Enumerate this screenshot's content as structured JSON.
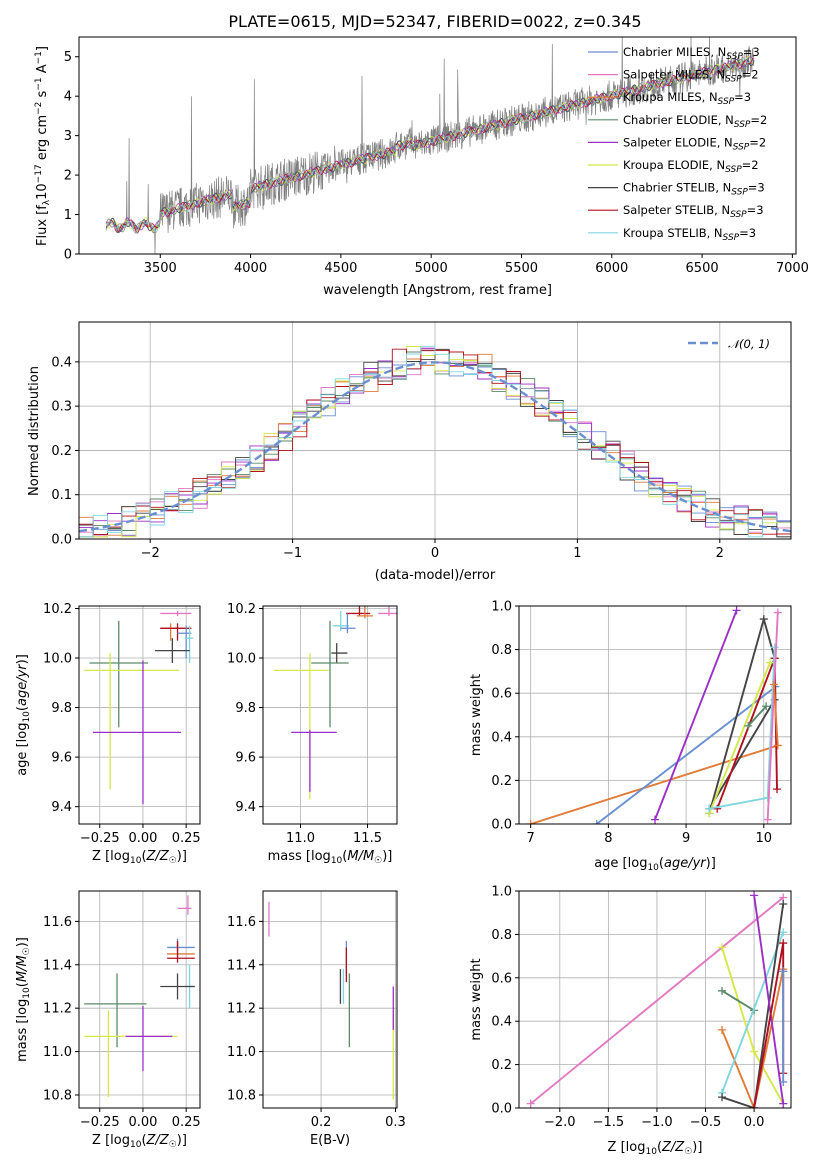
{
  "page": {
    "title": "PLATE=0615, MJD=52347, FIBERID=0022, z=0.345"
  },
  "chart_data": [
    {
      "id": "spectrum",
      "type": "line",
      "xlabel": "wavelength [Angstrom, rest frame]",
      "ylabel": "Flux [f_λ 10^-17 erg cm^-2 s^-1 A^-1]",
      "xlim": [
        3050,
        7020
      ],
      "ylim": [
        0,
        5.5
      ],
      "xticks": [
        3500,
        4000,
        4500,
        5000,
        5500,
        6000,
        6500,
        7000
      ],
      "yticks": [
        0,
        1,
        2,
        3,
        4,
        5
      ],
      "grid": false,
      "legend_position": "top-right",
      "data_series": {
        "name": "",
        "color": "#808080",
        "x_range": [
          3200,
          6790
        ],
        "level_start": 0.72,
        "level_end": 4.9,
        "noise": "high, with spikes to 5.5"
      },
      "series": [
        {
          "name": "Chabrier MILES, N_SSP=3",
          "color": "#6a8fd0"
        },
        {
          "name": "Salpeter MILES, N_SSP=2",
          "color": "#e377c2"
        },
        {
          "name": "Kroupa MILES, N_SSP=3",
          "color": "#e07b39"
        },
        {
          "name": "Chabrier ELODIE, N_SSP=2",
          "color": "#5b8a6a"
        },
        {
          "name": "Salpeter ELODIE, N_SSP=2",
          "color": "#9b30c8"
        },
        {
          "name": "Kroupa ELODIE, N_SSP=2",
          "color": "#d4e84a"
        },
        {
          "name": "Chabrier STELIB, N_SSP=3",
          "color": "#444444"
        },
        {
          "name": "Salpeter STELIB, N_SSP=3",
          "color": "#b01020"
        },
        {
          "name": "Kroupa STELIB, N_SSP=3",
          "color": "#7fd6e0"
        }
      ]
    },
    {
      "id": "residuals",
      "type": "line",
      "xlabel": "(data-model)/error",
      "ylabel": "Normed distribution",
      "xlim": [
        -2.5,
        2.5
      ],
      "ylim": [
        0,
        0.49
      ],
      "xticks": [
        -2,
        -1,
        0,
        1,
        2
      ],
      "yticks": [
        0.0,
        0.1,
        0.2,
        0.3,
        0.4
      ],
      "grid": true,
      "legend_position": "top-right",
      "gaussian": {
        "name": "𝒩(0, 1)",
        "mean": 0,
        "sigma": 1,
        "color": "#6a8fd0"
      },
      "bin_width": 0.1,
      "histogram_shape": "step histograms of each model, approx. 0.40 peak at 0, spread ±0.06"
    },
    {
      "id": "Z-age",
      "type": "scatter",
      "xlabel": "Z [log10(Z/Z☉)]",
      "ylabel": "age  [log10(age/yr)]",
      "xlim": [
        -0.37,
        0.33
      ],
      "ylim": [
        9.33,
        10.21
      ],
      "xticks": [
        -0.25,
        0.0,
        0.25
      ],
      "yticks": [
        9.4,
        9.6,
        9.8,
        10.0,
        10.2
      ],
      "grid": true,
      "points": [
        {
          "x": 0.2,
          "y": 10.18,
          "xerr": [
            0.1,
            0.08
          ],
          "yerr": [
            0.01,
            0.01
          ],
          "color": "#e377c2"
        },
        {
          "x": 0.16,
          "y": 10.12,
          "xerr": [
            0.06,
            0.12
          ],
          "yerr": [
            0.05,
            0.02
          ],
          "color": "#e07b39"
        },
        {
          "x": 0.2,
          "y": 10.12,
          "xerr": [
            0.1,
            0.08
          ],
          "yerr": [
            0.05,
            0.02
          ],
          "color": "#b01020"
        },
        {
          "x": 0.25,
          "y": 10.1,
          "xerr": [
            0.05,
            0.03
          ],
          "yerr": [
            0.1,
            0.03
          ],
          "color": "#6a8fd0"
        },
        {
          "x": 0.27,
          "y": 10.08,
          "xerr": [
            0.03,
            0.02
          ],
          "yerr": [
            0.1,
            0.05
          ],
          "color": "#7fd6e0"
        },
        {
          "x": 0.17,
          "y": 10.03,
          "xerr": [
            0.1,
            0.1
          ],
          "yerr": [
            0.05,
            0.05
          ],
          "color": "#444444"
        },
        {
          "x": -0.14,
          "y": 9.98,
          "xerr": [
            0.17,
            0.17
          ],
          "yerr": [
            0.26,
            0.17
          ],
          "color": "#5b8a6a"
        },
        {
          "x": -0.19,
          "y": 9.95,
          "xerr": [
            0.15,
            0.4
          ],
          "yerr": [
            0.48,
            0.07
          ],
          "color": "#d4e84a"
        },
        {
          "x": 0.0,
          "y": 9.7,
          "xerr": [
            0.29,
            0.22
          ],
          "yerr": [
            0.29,
            0.29
          ],
          "color": "#9b30c8"
        }
      ]
    },
    {
      "id": "mass-age",
      "type": "scatter",
      "xlabel": "mass [log10(M/M☉)]",
      "ylabel": "",
      "xlim": [
        10.72,
        11.72
      ],
      "ylim": [
        9.33,
        10.21
      ],
      "xticks": [
        11.0,
        11.5
      ],
      "yticks": [
        9.4,
        9.6,
        9.8,
        10.0,
        10.2
      ],
      "grid": true,
      "points": [
        {
          "x": 11.66,
          "y": 10.18,
          "xerr": [
            0.08,
            0.08
          ],
          "yerr": [
            0.01,
            0.15
          ],
          "color": "#e377c2"
        },
        {
          "x": 11.44,
          "y": 10.18,
          "xerr": [
            0.1,
            0.08
          ],
          "yerr": [
            0.01,
            0.06
          ],
          "color": "#b01020"
        },
        {
          "x": 11.48,
          "y": 10.17,
          "xerr": [
            0.06,
            0.06
          ],
          "yerr": [
            0.01,
            0.06
          ],
          "color": "#e07b39"
        },
        {
          "x": 11.3,
          "y": 10.13,
          "xerr": [
            0.06,
            0.06
          ],
          "yerr": [
            0.02,
            0.06
          ],
          "color": "#7fd6e0"
        },
        {
          "x": 11.35,
          "y": 10.12,
          "xerr": [
            0.05,
            0.06
          ],
          "yerr": [
            0.02,
            0.06
          ],
          "color": "#6a8fd0"
        },
        {
          "x": 11.27,
          "y": 10.02,
          "xerr": [
            0.04,
            0.08
          ],
          "yerr": [
            0.04,
            0.04
          ],
          "color": "#444444"
        },
        {
          "x": 11.22,
          "y": 9.98,
          "xerr": [
            0.14,
            0.14
          ],
          "yerr": [
            0.26,
            0.17
          ],
          "color": "#5b8a6a"
        },
        {
          "x": 11.07,
          "y": 9.95,
          "xerr": [
            0.27,
            0.14
          ],
          "yerr": [
            0.52,
            0.07
          ],
          "color": "#d4e84a"
        },
        {
          "x": 11.07,
          "y": 9.7,
          "xerr": [
            0.14,
            0.2
          ],
          "yerr": [
            0.24,
            0.01
          ],
          "color": "#9b30c8"
        }
      ]
    },
    {
      "id": "age-weight",
      "type": "line",
      "xlabel": "age  [log10(age/yr)]",
      "ylabel": "mass weight",
      "xlim": [
        6.85,
        10.35
      ],
      "ylim": [
        0,
        1
      ],
      "xticks": [
        7,
        8,
        9,
        10
      ],
      "yticks": [
        0.0,
        0.2,
        0.4,
        0.6,
        0.8,
        1.0
      ],
      "grid": true,
      "series": [
        {
          "color": "#e07b39",
          "x": [
            7.0,
            10.18
          ],
          "y": [
            0.0,
            0.36
          ]
        },
        {
          "color": "#6a8fd0",
          "x": [
            7.85,
            10.15
          ],
          "y": [
            0.0,
            0.63
          ]
        },
        {
          "color": "#9b30c8",
          "x": [
            8.6,
            9.65
          ],
          "y": [
            0.02,
            0.98
          ]
        },
        {
          "color": "#444444",
          "x": [
            9.3,
            10.0,
            10.14
          ],
          "y": [
            0.05,
            0.94,
            0.76
          ]
        },
        {
          "color": "#444444",
          "x": [
            9.3,
            10.14
          ],
          "y": [
            0.07,
            0.57
          ]
        },
        {
          "color": "#b01020",
          "x": [
            9.4,
            10.14,
            10.17
          ],
          "y": [
            0.07,
            0.76,
            0.16
          ]
        },
        {
          "color": "#d4e84a",
          "x": [
            9.3,
            10.08
          ],
          "y": [
            0.05,
            0.74
          ]
        },
        {
          "color": "#5b8a6a",
          "x": [
            9.8,
            10.03
          ],
          "y": [
            0.45,
            0.54
          ]
        },
        {
          "color": "#7fd6e0",
          "x": [
            9.3,
            10.05,
            10.14
          ],
          "y": [
            0.07,
            0.12,
            0.81
          ]
        },
        {
          "color": "#e377c2",
          "x": [
            10.05,
            10.18
          ],
          "y": [
            0.02,
            0.97
          ]
        },
        {
          "color": "#e07b39",
          "x": [
            10.13,
            10.18
          ],
          "y": [
            0.64,
            0.36
          ]
        }
      ]
    },
    {
      "id": "Z-mass",
      "type": "scatter",
      "xlabel": "Z [log10(Z/Z☉)]",
      "ylabel": "mass [log10(M/M☉)]",
      "xlim": [
        -0.37,
        0.33
      ],
      "ylim": [
        10.74,
        11.74
      ],
      "xticks": [
        -0.25,
        0.0,
        0.25
      ],
      "yticks": [
        10.8,
        11.0,
        11.2,
        11.4,
        11.6
      ],
      "grid": true,
      "points": [
        {
          "x": 0.26,
          "y": 11.66,
          "xerr": [
            0.06,
            0.02
          ],
          "yerr": [
            0.03,
            0.06
          ],
          "color": "#e377c2"
        },
        {
          "x": 0.2,
          "y": 11.48,
          "xerr": [
            0.06,
            0.1
          ],
          "yerr": [
            0.02,
            0.04
          ],
          "color": "#6a8fd0"
        },
        {
          "x": 0.2,
          "y": 11.45,
          "xerr": [
            0.06,
            0.1
          ],
          "yerr": [
            0.02,
            0.05
          ],
          "color": "#e07b39"
        },
        {
          "x": 0.2,
          "y": 11.43,
          "xerr": [
            0.06,
            0.1
          ],
          "yerr": [
            0.02,
            0.08
          ],
          "color": "#b01020"
        },
        {
          "x": 0.27,
          "y": 11.3,
          "xerr": [
            0.03,
            0.03
          ],
          "yerr": [
            0.1,
            0.1
          ],
          "color": "#7fd6e0"
        },
        {
          "x": 0.2,
          "y": 11.3,
          "xerr": [
            0.1,
            0.1
          ],
          "yerr": [
            0.06,
            0.06
          ],
          "color": "#444444"
        },
        {
          "x": -0.15,
          "y": 11.22,
          "xerr": [
            0.19,
            0.17
          ],
          "yerr": [
            0.2,
            0.14
          ],
          "color": "#5b8a6a"
        },
        {
          "x": -0.2,
          "y": 11.07,
          "xerr": [
            0.14,
            0.4
          ],
          "yerr": [
            0.28,
            0.12
          ],
          "color": "#d4e84a"
        },
        {
          "x": 0.0,
          "y": 11.07,
          "xerr": [
            0.1,
            0.17
          ],
          "yerr": [
            0.16,
            0.14
          ],
          "color": "#9b30c8"
        }
      ]
    },
    {
      "id": "EBV-mass",
      "type": "scatter",
      "xlabel": "E(B-V)",
      "ylabel": "",
      "xlim": [
        0.122,
        0.302
      ],
      "ylim": [
        10.74,
        11.74
      ],
      "xticks": [
        0.2,
        0.3
      ],
      "yticks": [
        10.8,
        11.0,
        11.2,
        11.4,
        11.6
      ],
      "grid": true,
      "points": [
        {
          "x": 0.13,
          "y": 11.61,
          "yerr": [
            0.08,
            0.08
          ],
          "color": "#e377c2"
        },
        {
          "x": 0.234,
          "y": 11.43,
          "yerr": [
            0.08,
            0.08
          ],
          "color": "#6a8fd0"
        },
        {
          "x": 0.234,
          "y": 11.4,
          "yerr": [
            0.08,
            0.08
          ],
          "color": "#b01020"
        },
        {
          "x": 0.23,
          "y": 11.3,
          "yerr": [
            0.08,
            0.08
          ],
          "color": "#7fd6e0"
        },
        {
          "x": 0.226,
          "y": 11.3,
          "yerr": [
            0.08,
            0.08
          ],
          "color": "#444444"
        },
        {
          "x": 0.238,
          "y": 11.22,
          "yerr": [
            0.2,
            0.14
          ],
          "color": "#5b8a6a"
        },
        {
          "x": 0.297,
          "y": 11.15,
          "yerr": [
            0.37,
            0.04
          ],
          "color": "#d4e84a"
        },
        {
          "x": 0.297,
          "y": 11.2,
          "yerr": [
            0.1,
            0.1
          ],
          "color": "#9b30c8"
        }
      ]
    },
    {
      "id": "Z-weight",
      "type": "line",
      "xlabel": "Z [log10(Z/Z☉)]",
      "ylabel": "mass weight",
      "xlim": [
        -2.42,
        0.38
      ],
      "ylim": [
        0,
        1
      ],
      "xticks": [
        -2.0,
        -1.5,
        -1.0,
        -0.5,
        0.0
      ],
      "yticks": [
        0.0,
        0.2,
        0.4,
        0.6,
        0.8,
        1.0
      ],
      "grid": true,
      "series": [
        {
          "color": "#e377c2",
          "x": [
            -2.3,
            0.3
          ],
          "y": [
            0.02,
            0.97
          ]
        },
        {
          "color": "#d4e84a",
          "x": [
            -0.33,
            0.0,
            0.3
          ],
          "y": [
            0.74,
            0.26,
            0.02
          ]
        },
        {
          "color": "#5b8a6a",
          "x": [
            -0.33,
            0.0
          ],
          "y": [
            0.54,
            0.45
          ]
        },
        {
          "color": "#e07b39",
          "x": [
            -0.33,
            0.0,
            0.3
          ],
          "y": [
            0.36,
            0.0,
            0.64
          ]
        },
        {
          "color": "#7fd6e0",
          "x": [
            -0.33,
            0.3
          ],
          "y": [
            0.07,
            0.81
          ]
        },
        {
          "color": "#444444",
          "x": [
            -0.33,
            0.0,
            0.3
          ],
          "y": [
            0.05,
            0.0,
            0.94
          ]
        },
        {
          "color": "#9b30c8",
          "x": [
            0.0,
            0.3
          ],
          "y": [
            0.98,
            0.02
          ]
        },
        {
          "color": "#b01020",
          "x": [
            0.0,
            0.3,
            0.3
          ],
          "y": [
            0.0,
            0.76,
            0.16
          ]
        },
        {
          "color": "#6a8fd0",
          "x": [
            0.3,
            0.3
          ],
          "y": [
            0.63,
            0.12
          ]
        }
      ]
    }
  ]
}
